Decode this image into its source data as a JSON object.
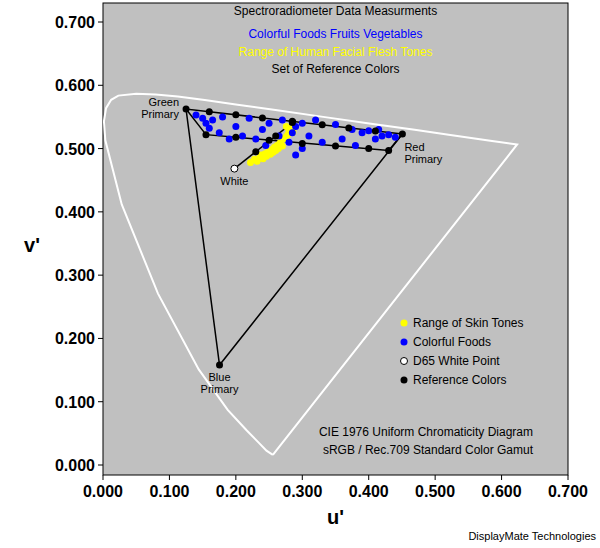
{
  "chart_data": {
    "type": "scatter",
    "title": "Spectroradiometer Data Measurments",
    "subtitles": [
      {
        "text": "Colorful Foods Fruits Vegetables",
        "color": "#0000ff"
      },
      {
        "text": "Range of Human Facial Flesh Tones",
        "color": "#ffff00"
      },
      {
        "text": "Set of Reference Colors",
        "color": "#000000"
      }
    ],
    "notes": [
      "CIE 1976 Uniform Chromaticity Diagram",
      "sRGB / Rec.709 Standard Color Gamut"
    ],
    "source": "DisplayMate Technologies",
    "x_label": "u'",
    "y_label": "v'",
    "xlim": [
      0,
      0.7
    ],
    "ylim": [
      0,
      0.7
    ],
    "xticks": [
      {
        "value": 0,
        "label": "0.000"
      },
      {
        "value": 0.1,
        "label": "0.100"
      },
      {
        "value": 0.2,
        "label": "0.200"
      },
      {
        "value": 0.3,
        "label": "0.300"
      },
      {
        "value": 0.4,
        "label": "0.400"
      },
      {
        "value": 0.5,
        "label": "0.500"
      },
      {
        "value": 0.6,
        "label": "0.600"
      },
      {
        "value": 0.7,
        "label": "0.700"
      }
    ],
    "yticks": [
      {
        "value": 0,
        "label": "0.000"
      },
      {
        "value": 0.1,
        "label": "0.100"
      },
      {
        "value": 0.2,
        "label": "0.200"
      },
      {
        "value": 0.3,
        "label": "0.300"
      },
      {
        "value": 0.4,
        "label": "0.400"
      },
      {
        "value": 0.5,
        "label": "0.500"
      },
      {
        "value": 0.6,
        "label": "0.600"
      },
      {
        "value": 0.7,
        "label": "0.700"
      }
    ],
    "grid": false,
    "legend": "right",
    "series": [
      {
        "type": "line",
        "color": "#ffffff",
        "x": [
          0.2557,
          0.2461,
          0.2347,
          0.2161,
          0.1877,
          0.1441,
          0.0828,
          0.0282,
          0.0035,
          0.0014,
          0.0046,
          0.0123,
          0.0231,
          0.0501,
          0.0792,
          0.1127,
          0.1531,
          0.2026,
          0.2623,
          0.3315,
          0.4035,
          0.4692,
          0.5203,
          0.583,
          0.6234,
          0.2557
        ],
        "values": [
          0.0159,
          0.0226,
          0.035,
          0.0549,
          0.0871,
          0.151,
          0.2708,
          0.4117,
          0.5131,
          0.5431,
          0.5638,
          0.577,
          0.5837,
          0.5868,
          0.5856,
          0.5821,
          0.5766,
          0.5694,
          0.5604,
          0.5501,
          0.5393,
          0.5296,
          0.5219,
          0.5125,
          0.5065,
          0.0159
        ]
      },
      {
        "type": "line",
        "color": "#000000",
        "x": [
          0.4507,
          0.125,
          0.1754,
          0.4507
        ],
        "values": [
          0.5229,
          0.5625,
          0.1579,
          0.5229
        ]
      },
      {
        "type": "line",
        "color": "#000000",
        "x": [
          0.125,
          0.155,
          0.43,
          0.4507
        ],
        "values": [
          0.5625,
          0.522,
          0.497,
          0.5229
        ]
      },
      {
        "type": "line",
        "color": "#000000",
        "x": [
          0.1978,
          0.29
        ],
        "values": [
          0.4683,
          0.545
        ]
      },
      {
        "name": "Range of Skin Tones",
        "type": "scatter",
        "color": "#ffff00",
        "marker": "circle",
        "x": [
          0.222,
          0.228,
          0.232,
          0.236,
          0.238,
          0.241,
          0.244,
          0.246,
          0.249,
          0.252,
          0.254,
          0.256,
          0.258,
          0.26,
          0.262,
          0.264,
          0.266,
          0.268,
          0.27,
          0.272,
          0.275,
          0.278,
          0.28,
          0.283,
          0.286,
          0.276
        ],
        "values": [
          0.478,
          0.483,
          0.48,
          0.486,
          0.49,
          0.484,
          0.492,
          0.488,
          0.495,
          0.491,
          0.498,
          0.494,
          0.502,
          0.497,
          0.505,
          0.5,
          0.508,
          0.512,
          0.504,
          0.515,
          0.518,
          0.522,
          0.528,
          0.532,
          0.526,
          0.535
        ]
      },
      {
        "name": "Colorful Foods",
        "type": "scatter",
        "color": "#0000ff",
        "marker": "circle",
        "x": [
          0.14,
          0.15,
          0.155,
          0.16,
          0.165,
          0.175,
          0.18,
          0.19,
          0.2,
          0.21,
          0.22,
          0.23,
          0.24,
          0.245,
          0.25,
          0.265,
          0.27,
          0.28,
          0.29,
          0.3,
          0.3,
          0.31,
          0.32,
          0.33,
          0.35,
          0.36,
          0.375,
          0.38,
          0.39,
          0.4,
          0.41,
          0.415,
          0.42,
          0.43,
          0.44,
          0.285,
          0.29
        ],
        "values": [
          0.553,
          0.548,
          0.54,
          0.532,
          0.545,
          0.525,
          0.55,
          0.515,
          0.535,
          0.52,
          0.548,
          0.515,
          0.53,
          0.505,
          0.54,
          0.52,
          0.545,
          0.51,
          0.535,
          0.54,
          0.5,
          0.52,
          0.545,
          0.51,
          0.538,
          0.515,
          0.53,
          0.505,
          0.525,
          0.528,
          0.515,
          0.53,
          0.52,
          0.522,
          0.518,
          0.525,
          0.49
        ]
      },
      {
        "name": "D65 White Point",
        "type": "scatter",
        "color": "#ffffff",
        "marker": "circle",
        "x": [
          0.1978
        ],
        "values": [
          0.4683
        ]
      },
      {
        "name": "Reference Colors",
        "type": "scatter",
        "color": "#000000",
        "marker": "circle",
        "x": [
          0.125,
          0.16,
          0.2,
          0.24,
          0.285,
          0.33,
          0.37,
          0.41,
          0.4507,
          0.155,
          0.2,
          0.25,
          0.3,
          0.35,
          0.4,
          0.43,
          0.23,
          0.26,
          0.285,
          0.1754
        ],
        "values": [
          0.5625,
          0.558,
          0.5534,
          0.5485,
          0.543,
          0.5376,
          0.5327,
          0.5278,
          0.5229,
          0.522,
          0.518,
          0.513,
          0.508,
          0.504,
          0.5,
          0.497,
          0.495,
          0.52,
          0.541,
          0.1579
        ]
      }
    ],
    "annotations": [
      {
        "text": "Green Primary",
        "x": 0.125,
        "y": 0.5625
      },
      {
        "text": "Red Primary",
        "x": 0.4507,
        "y": 0.5229
      },
      {
        "text": "Blue Primary",
        "x": 0.1754,
        "y": 0.1579
      },
      {
        "text": "White",
        "x": 0.1978,
        "y": 0.4683
      }
    ]
  }
}
